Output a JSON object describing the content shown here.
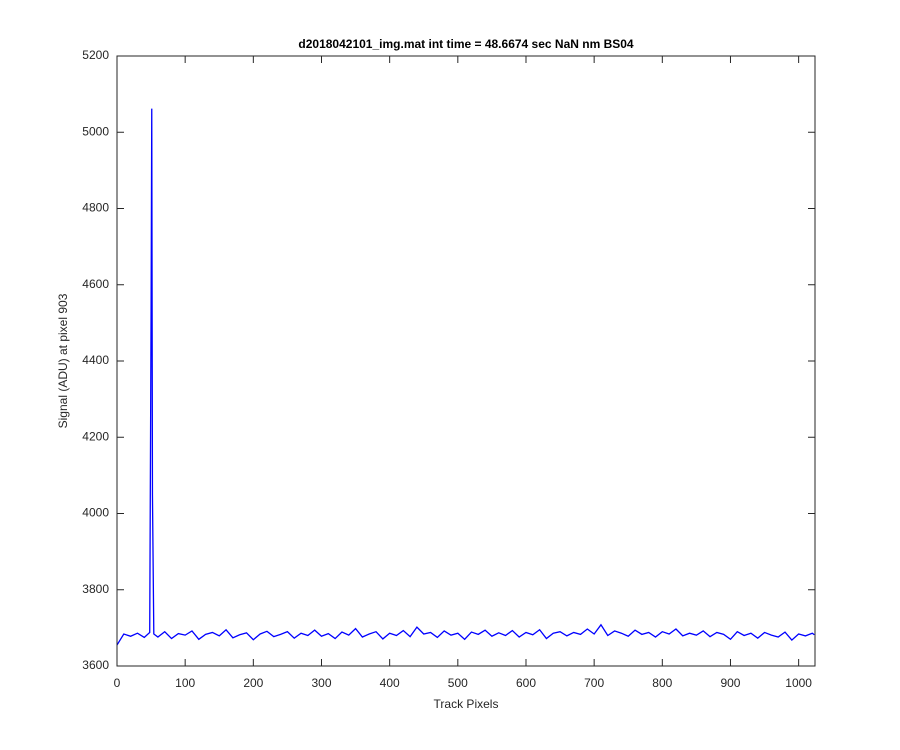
{
  "chart_data": {
    "type": "line",
    "title": "d2018042101_img.mat int time = 48.6674 sec  NaN nm BS04",
    "x_label": "Track Pixels",
    "y_label": "Signal (ADU) at pixel 903",
    "xlim": [
      0,
      1024
    ],
    "ylim": [
      3600,
      5200
    ],
    "xticks": [
      0,
      100,
      200,
      300,
      400,
      500,
      600,
      700,
      800,
      900,
      1000
    ],
    "yticks": [
      3600,
      3800,
      4000,
      4200,
      4400,
      4600,
      4800,
      5000,
      5200
    ],
    "x": [
      0,
      10,
      20,
      30,
      40,
      48,
      50,
      51,
      52,
      54,
      60,
      70,
      80,
      90,
      100,
      110,
      120,
      130,
      140,
      150,
      160,
      170,
      180,
      190,
      200,
      210,
      220,
      230,
      240,
      250,
      260,
      270,
      280,
      290,
      300,
      310,
      320,
      330,
      340,
      350,
      360,
      370,
      380,
      390,
      400,
      410,
      420,
      430,
      440,
      450,
      460,
      470,
      480,
      490,
      500,
      510,
      520,
      530,
      540,
      550,
      560,
      570,
      580,
      590,
      600,
      610,
      620,
      630,
      640,
      650,
      660,
      670,
      680,
      690,
      700,
      710,
      720,
      730,
      740,
      750,
      760,
      770,
      780,
      790,
      800,
      810,
      820,
      830,
      840,
      850,
      860,
      870,
      880,
      890,
      900,
      910,
      920,
      930,
      940,
      950,
      960,
      970,
      980,
      990,
      1000,
      1010,
      1020,
      1023
    ],
    "series": [
      {
        "color": "#0000ff",
        "values": [
          3655,
          3684,
          3678,
          3686,
          3675,
          3688,
          4530,
          5062,
          4050,
          3684,
          3676,
          3690,
          3672,
          3685,
          3681,
          3692,
          3670,
          3683,
          3688,
          3679,
          3695,
          3674,
          3682,
          3687,
          3669,
          3684,
          3691,
          3677,
          3683,
          3690,
          3673,
          3686,
          3680,
          3694,
          3678,
          3685,
          3672,
          3689,
          3681,
          3698,
          3676,
          3684,
          3690,
          3671,
          3686,
          3680,
          3693,
          3677,
          3702,
          3684,
          3688,
          3675,
          3692,
          3681,
          3686,
          3670,
          3689,
          3683,
          3694,
          3678,
          3687,
          3680,
          3693,
          3676,
          3688,
          3682,
          3695,
          3672,
          3686,
          3690,
          3679,
          3688,
          3683,
          3697,
          3684,
          3708,
          3680,
          3692,
          3686,
          3678,
          3694,
          3683,
          3688,
          3676,
          3690,
          3684,
          3697,
          3679,
          3686,
          3681,
          3692,
          3677,
          3688,
          3683,
          3670,
          3690,
          3680,
          3686,
          3673,
          3688,
          3681,
          3676,
          3689,
          3668,
          3684,
          3679,
          3686,
          3682
        ]
      }
    ],
    "box": true
  }
}
